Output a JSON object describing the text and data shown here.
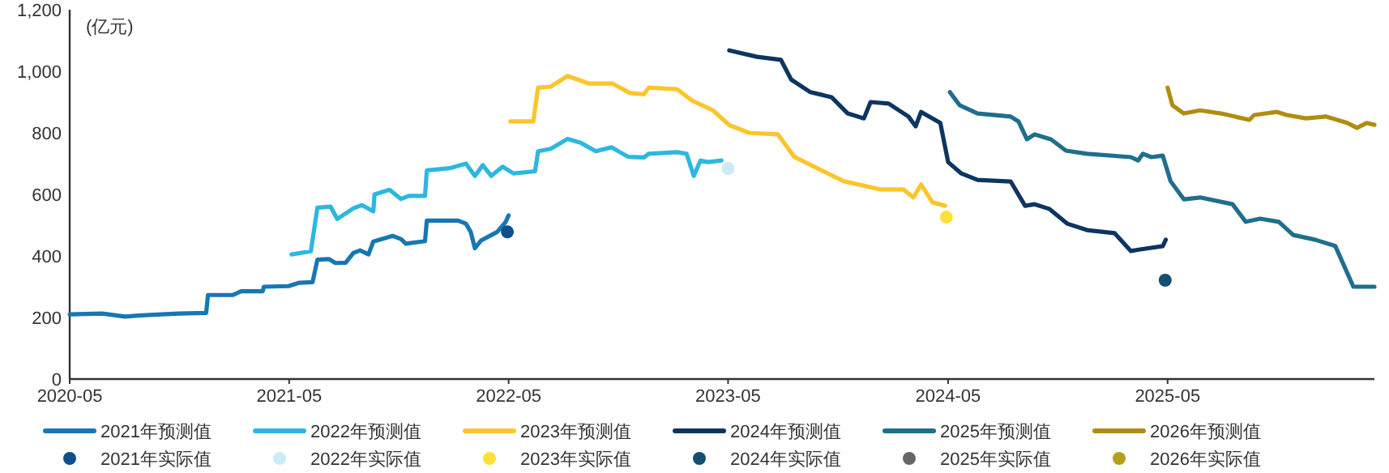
{
  "chart_data": {
    "type": "line",
    "ylabel": "(亿元)",
    "xlim": [
      "2020-05",
      "2026-04-10"
    ],
    "xticks": [
      "2020-05",
      "2021-05",
      "2022-05",
      "2023-05",
      "2024-05",
      "2025-05"
    ],
    "ylim": [
      0,
      1200
    ],
    "yticks": [
      0,
      200,
      400,
      600,
      800,
      {
        "value": 1000,
        "label": "1,000"
      },
      {
        "value": 1200,
        "label": "1,200"
      }
    ],
    "legend": "bottom",
    "grid": false,
    "series": [
      {
        "name": "2021年预测值",
        "color": "#1677b3",
        "x": [
          "2020-05-01",
          "2020-06-24",
          "2020-08-01",
          "2020-08-28",
          "2020-10-29",
          "2020-12-14",
          "2020-12-17",
          "2021-01-27",
          "2021-02-10",
          "2021-03-18",
          "2021-03-20",
          "2021-04-30",
          "2021-05-18",
          "2021-06-09",
          "2021-06-17",
          "2021-07-06",
          "2021-07-17",
          "2021-08-03",
          "2021-08-16",
          "2021-08-27",
          "2021-09-10",
          "2021-09-18",
          "2021-10-20",
          "2021-11-03",
          "2021-11-11",
          "2021-12-13",
          "2021-12-16",
          "2022-02-06",
          "2022-02-19",
          "2022-02-27",
          "2022-03-06",
          "2022-03-16",
          "2022-04-12",
          "2022-04-26",
          "2022-05-01"
        ],
        "values": [
          210,
          213,
          203,
          207,
          213,
          215,
          273,
          273,
          285,
          285,
          300,
          302,
          313,
          315,
          388,
          390,
          377,
          378,
          410,
          418,
          405,
          447,
          465,
          455,
          440,
          448,
          515,
          515,
          505,
          478,
          425,
          450,
          478,
          510,
          532
        ]
      },
      {
        "name": "2022年预测值",
        "color": "#2db7e0",
        "x": [
          "2021-05-05",
          "2021-06-06",
          "2021-06-17",
          "2021-07-09",
          "2021-07-20",
          "2021-08-16",
          "2021-08-30",
          "2021-09-18",
          "2021-09-20",
          "2021-10-15",
          "2021-11-03",
          "2021-11-16",
          "2021-12-13",
          "2021-12-16",
          "2022-01-23",
          "2022-02-19",
          "2022-03-06",
          "2022-03-19",
          "2022-04-02",
          "2022-04-21",
          "2022-05-09",
          "2022-06-14",
          "2022-06-19",
          "2022-07-10",
          "2022-08-07",
          "2022-08-29",
          "2022-09-23",
          "2022-10-19",
          "2022-11-16",
          "2022-12-12",
          "2022-12-20",
          "2023-02-05",
          "2023-02-21",
          "2023-03-05",
          "2023-03-16",
          "2023-03-29",
          "2023-04-20"
        ],
        "values": [
          405,
          415,
          557,
          560,
          520,
          555,
          565,
          545,
          600,
          615,
          585,
          595,
          595,
          678,
          685,
          700,
          660,
          695,
          660,
          690,
          668,
          675,
          740,
          748,
          780,
          768,
          740,
          753,
          722,
          720,
          732,
          737,
          732,
          660,
          710,
          705,
          710
        ]
      },
      {
        "name": "2023年预测值",
        "color": "#fbc52c",
        "x": [
          "2022-05-04",
          "2022-06-11",
          "2022-06-19",
          "2022-07-10",
          "2022-08-07",
          "2022-09-12",
          "2022-10-21",
          "2022-11-18",
          "2022-12-12",
          "2022-12-20",
          "2023-02-05",
          "2023-03-02",
          "2023-04-06",
          "2023-05-03",
          "2023-06-05",
          "2023-07-23",
          "2023-08-19",
          "2023-11-09",
          "2024-01-10",
          "2024-02-17",
          "2024-03-04",
          "2024-03-17",
          "2024-04-05",
          "2024-04-26"
        ],
        "values": [
          837,
          837,
          947,
          950,
          985,
          960,
          960,
          930,
          925,
          947,
          942,
          905,
          873,
          825,
          800,
          795,
          722,
          643,
          616,
          616,
          590,
          632,
          574,
          563
        ]
      },
      {
        "name": "2024年预测值",
        "color": "#0d3560",
        "x": [
          "2023-05-03",
          "2023-06-18",
          "2023-07-28",
          "2023-08-14",
          "2023-09-15",
          "2023-10-20",
          "2023-11-16",
          "2023-12-13",
          "2023-12-24",
          "2024-01-23",
          "2024-02-25",
          "2024-03-08",
          "2024-03-17",
          "2024-04-18",
          "2024-05-01",
          "2024-05-23",
          "2024-06-19",
          "2024-08-13",
          "2024-09-06",
          "2024-09-22",
          "2024-10-16",
          "2024-11-15",
          "2024-12-18",
          "2025-02-02",
          "2025-03-01",
          "2025-03-16",
          "2025-04-23",
          "2025-04-28"
        ],
        "values": [
          1068,
          1047,
          1037,
          973,
          932,
          916,
          863,
          847,
          900,
          895,
          853,
          821,
          868,
          832,
          705,
          668,
          647,
          642,
          563,
          568,
          553,
          505,
          484,
          474,
          416,
          421,
          432,
          453
        ]
      },
      {
        "name": "2025年预测值",
        "color": "#1f6e8c",
        "x": [
          "2024-05-04",
          "2024-05-20",
          "2024-06-19",
          "2024-08-13",
          "2024-08-26",
          "2024-09-09",
          "2024-09-22",
          "2024-10-19",
          "2024-11-13",
          "2024-12-18",
          "2025-03-01",
          "2025-03-13",
          "2025-03-21",
          "2025-04-04",
          "2025-04-23",
          "2025-05-06",
          "2025-05-28",
          "2025-06-24",
          "2025-08-17",
          "2025-09-08",
          "2025-10-02",
          "2025-11-02",
          "2025-11-26",
          "2026-01-01",
          "2026-02-04",
          "2026-03-06",
          "2026-04-10"
        ],
        "values": [
          932,
          890,
          863,
          853,
          837,
          779,
          795,
          779,
          742,
          732,
          721,
          710,
          732,
          721,
          726,
          643,
          584,
          590,
          568,
          511,
          521,
          511,
          468,
          453,
          432,
          300,
          300
        ]
      },
      {
        "name": "2026年预测值",
        "color": "#b08d12",
        "x": [
          "2025-05-01",
          "2025-05-09",
          "2025-05-28",
          "2025-06-24",
          "2025-07-29",
          "2025-09-14",
          "2025-09-22",
          "2025-10-30",
          "2025-11-15",
          "2025-12-17",
          "2026-01-19",
          "2026-02-24",
          "2026-03-12",
          "2026-03-28",
          "2026-04-10"
        ],
        "values": [
          947,
          890,
          863,
          873,
          863,
          842,
          858,
          868,
          858,
          847,
          853,
          832,
          816,
          832,
          826
        ]
      },
      {
        "name": "2021年实际值",
        "type": "scatter",
        "color": "#0e4f8c",
        "x": [
          "2022-04-29"
        ],
        "values": [
          478
        ]
      },
      {
        "name": "2022年实际值",
        "type": "scatter",
        "color": "#cdeaf6",
        "x": [
          "2023-05-01"
        ],
        "values": [
          684
        ]
      },
      {
        "name": "2023年实际值",
        "type": "scatter",
        "color": "#fbe03a",
        "x": [
          "2024-04-28"
        ],
        "values": [
          526
        ]
      },
      {
        "name": "2024年实际值",
        "type": "scatter",
        "color": "#154e6e",
        "x": [
          "2025-04-27"
        ],
        "values": [
          321
        ]
      },
      {
        "name": "2025年实际值",
        "type": "scatter",
        "color": "#666666"
      },
      {
        "name": "2026年实际值",
        "type": "scatter",
        "color": "#b3a11b"
      }
    ]
  }
}
